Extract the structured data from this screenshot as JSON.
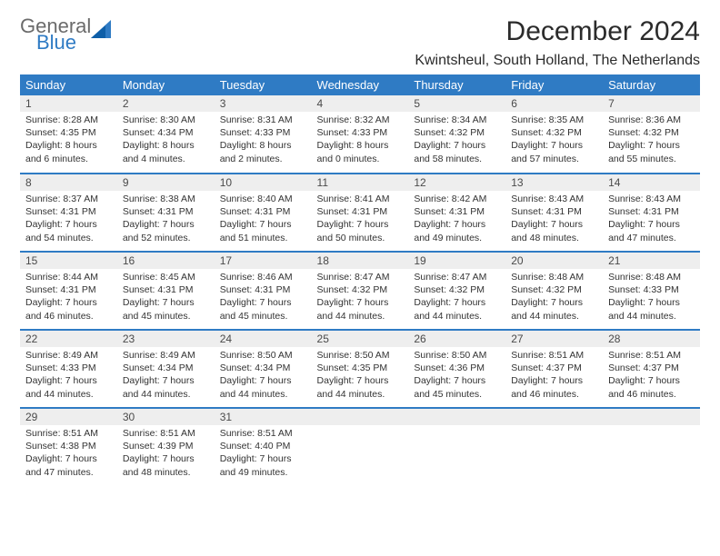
{
  "brand": {
    "word1": "General",
    "word2": "Blue",
    "word1_color": "#6b6b6b",
    "word2_color": "#2f7bc4"
  },
  "title": "December 2024",
  "location": "Kwintsheul, South Holland, The Netherlands",
  "header_bg": "#2f7bc4",
  "header_fg": "#ffffff",
  "daynum_bg": "#eeeeee",
  "border_color": "#2f7bc4",
  "columns": [
    "Sunday",
    "Monday",
    "Tuesday",
    "Wednesday",
    "Thursday",
    "Friday",
    "Saturday"
  ],
  "weeks": [
    [
      {
        "n": "1",
        "sunrise": "8:28 AM",
        "sunset": "4:35 PM",
        "daylight": "8 hours and 6 minutes."
      },
      {
        "n": "2",
        "sunrise": "8:30 AM",
        "sunset": "4:34 PM",
        "daylight": "8 hours and 4 minutes."
      },
      {
        "n": "3",
        "sunrise": "8:31 AM",
        "sunset": "4:33 PM",
        "daylight": "8 hours and 2 minutes."
      },
      {
        "n": "4",
        "sunrise": "8:32 AM",
        "sunset": "4:33 PM",
        "daylight": "8 hours and 0 minutes."
      },
      {
        "n": "5",
        "sunrise": "8:34 AM",
        "sunset": "4:32 PM",
        "daylight": "7 hours and 58 minutes."
      },
      {
        "n": "6",
        "sunrise": "8:35 AM",
        "sunset": "4:32 PM",
        "daylight": "7 hours and 57 minutes."
      },
      {
        "n": "7",
        "sunrise": "8:36 AM",
        "sunset": "4:32 PM",
        "daylight": "7 hours and 55 minutes."
      }
    ],
    [
      {
        "n": "8",
        "sunrise": "8:37 AM",
        "sunset": "4:31 PM",
        "daylight": "7 hours and 54 minutes."
      },
      {
        "n": "9",
        "sunrise": "8:38 AM",
        "sunset": "4:31 PM",
        "daylight": "7 hours and 52 minutes."
      },
      {
        "n": "10",
        "sunrise": "8:40 AM",
        "sunset": "4:31 PM",
        "daylight": "7 hours and 51 minutes."
      },
      {
        "n": "11",
        "sunrise": "8:41 AM",
        "sunset": "4:31 PM",
        "daylight": "7 hours and 50 minutes."
      },
      {
        "n": "12",
        "sunrise": "8:42 AM",
        "sunset": "4:31 PM",
        "daylight": "7 hours and 49 minutes."
      },
      {
        "n": "13",
        "sunrise": "8:43 AM",
        "sunset": "4:31 PM",
        "daylight": "7 hours and 48 minutes."
      },
      {
        "n": "14",
        "sunrise": "8:43 AM",
        "sunset": "4:31 PM",
        "daylight": "7 hours and 47 minutes."
      }
    ],
    [
      {
        "n": "15",
        "sunrise": "8:44 AM",
        "sunset": "4:31 PM",
        "daylight": "7 hours and 46 minutes."
      },
      {
        "n": "16",
        "sunrise": "8:45 AM",
        "sunset": "4:31 PM",
        "daylight": "7 hours and 45 minutes."
      },
      {
        "n": "17",
        "sunrise": "8:46 AM",
        "sunset": "4:31 PM",
        "daylight": "7 hours and 45 minutes."
      },
      {
        "n": "18",
        "sunrise": "8:47 AM",
        "sunset": "4:32 PM",
        "daylight": "7 hours and 44 minutes."
      },
      {
        "n": "19",
        "sunrise": "8:47 AM",
        "sunset": "4:32 PM",
        "daylight": "7 hours and 44 minutes."
      },
      {
        "n": "20",
        "sunrise": "8:48 AM",
        "sunset": "4:32 PM",
        "daylight": "7 hours and 44 minutes."
      },
      {
        "n": "21",
        "sunrise": "8:48 AM",
        "sunset": "4:33 PM",
        "daylight": "7 hours and 44 minutes."
      }
    ],
    [
      {
        "n": "22",
        "sunrise": "8:49 AM",
        "sunset": "4:33 PM",
        "daylight": "7 hours and 44 minutes."
      },
      {
        "n": "23",
        "sunrise": "8:49 AM",
        "sunset": "4:34 PM",
        "daylight": "7 hours and 44 minutes."
      },
      {
        "n": "24",
        "sunrise": "8:50 AM",
        "sunset": "4:34 PM",
        "daylight": "7 hours and 44 minutes."
      },
      {
        "n": "25",
        "sunrise": "8:50 AM",
        "sunset": "4:35 PM",
        "daylight": "7 hours and 44 minutes."
      },
      {
        "n": "26",
        "sunrise": "8:50 AM",
        "sunset": "4:36 PM",
        "daylight": "7 hours and 45 minutes."
      },
      {
        "n": "27",
        "sunrise": "8:51 AM",
        "sunset": "4:37 PM",
        "daylight": "7 hours and 46 minutes."
      },
      {
        "n": "28",
        "sunrise": "8:51 AM",
        "sunset": "4:37 PM",
        "daylight": "7 hours and 46 minutes."
      }
    ],
    [
      {
        "n": "29",
        "sunrise": "8:51 AM",
        "sunset": "4:38 PM",
        "daylight": "7 hours and 47 minutes."
      },
      {
        "n": "30",
        "sunrise": "8:51 AM",
        "sunset": "4:39 PM",
        "daylight": "7 hours and 48 minutes."
      },
      {
        "n": "31",
        "sunrise": "8:51 AM",
        "sunset": "4:40 PM",
        "daylight": "7 hours and 49 minutes."
      },
      {
        "empty": true
      },
      {
        "empty": true
      },
      {
        "empty": true
      },
      {
        "empty": true
      }
    ]
  ],
  "labels": {
    "sunrise": "Sunrise:",
    "sunset": "Sunset:",
    "daylight": "Daylight:"
  }
}
